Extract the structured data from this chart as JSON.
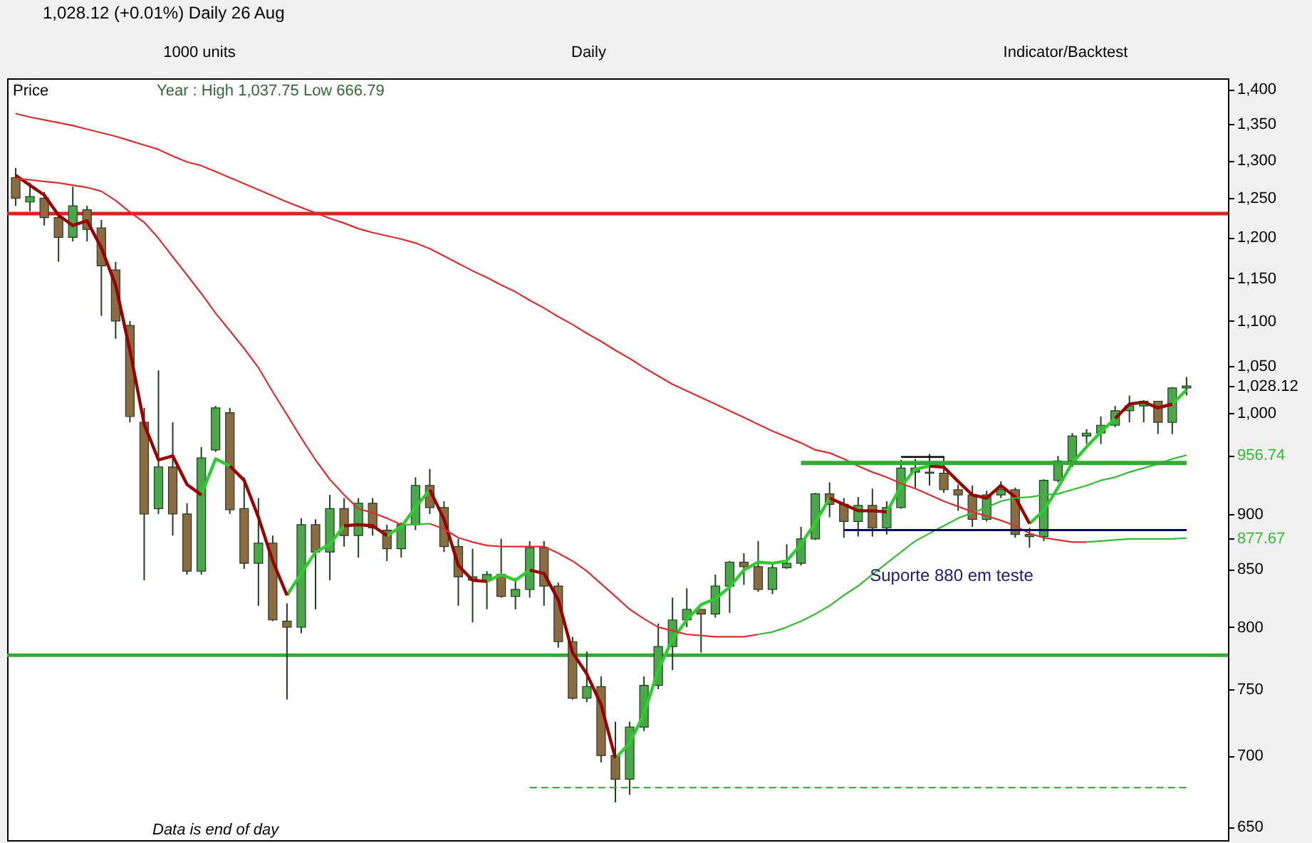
{
  "chart_data": {
    "type": "candlestick",
    "title": "1,028.12 (+0.01%) Daily 26 Aug",
    "subtitle": "Year : High 1,037.75 Low 666.79",
    "annotations": [
      "1000 units",
      "Daily",
      "Indicator/Backtest",
      "Price",
      "Data is end of day",
      "Suporte 880 em teste"
    ],
    "categories": [
      null,
      null,
      null,
      null,
      null,
      null,
      null,
      null,
      null,
      null,
      null,
      null,
      null,
      null,
      null,
      null,
      null,
      null,
      null,
      null,
      null,
      null,
      null,
      null,
      null,
      null,
      null,
      null,
      null,
      null,
      null,
      null,
      null,
      null,
      null,
      null,
      null,
      null,
      null,
      null,
      null,
      null,
      null,
      null,
      null,
      null,
      null,
      null,
      null,
      null,
      null,
      null,
      null,
      null,
      null,
      null,
      null,
      null,
      null,
      null,
      null,
      null,
      null,
      null,
      null,
      null,
      null,
      null,
      null,
      null,
      null,
      null,
      null,
      null,
      null,
      null,
      null,
      null,
      null,
      null,
      null,
      null,
      null
    ],
    "ohlc": [
      [
        1277,
        1290,
        1240,
        1250
      ],
      [
        1245,
        1270,
        1233,
        1252
      ],
      [
        1250,
        1258,
        1215,
        1225
      ],
      [
        1225,
        1232,
        1170,
        1200
      ],
      [
        1200,
        1265,
        1195,
        1240
      ],
      [
        1235,
        1240,
        1195,
        1210
      ],
      [
        1212,
        1222,
        1106,
        1165
      ],
      [
        1160,
        1170,
        1080,
        1100
      ],
      [
        1095,
        1100,
        990,
        996
      ],
      [
        990,
        1005,
        840,
        900
      ],
      [
        905,
        1045,
        900,
        945
      ],
      [
        945,
        990,
        880,
        900
      ],
      [
        900,
        910,
        845,
        848
      ],
      [
        848,
        965,
        845,
        954
      ],
      [
        962,
        1007,
        960,
        1005
      ],
      [
        1000,
        1005,
        900,
        904
      ],
      [
        905,
        935,
        850,
        855
      ],
      [
        855,
        915,
        818,
        873
      ],
      [
        873,
        880,
        805,
        806
      ],
      [
        805,
        820,
        742,
        800
      ],
      [
        800,
        896,
        795,
        890
      ],
      [
        890,
        895,
        815,
        865
      ],
      [
        865,
        918,
        840,
        905
      ],
      [
        905,
        915,
        870,
        880
      ],
      [
        880,
        915,
        860,
        910
      ],
      [
        910,
        915,
        880,
        887
      ],
      [
        885,
        890,
        857,
        868
      ],
      [
        868,
        892,
        860,
        890
      ],
      [
        890,
        935,
        885,
        927
      ],
      [
        927,
        943,
        900,
        906
      ],
      [
        906,
        912,
        865,
        870
      ],
      [
        870,
        877,
        818,
        843
      ],
      [
        843,
        868,
        804,
        840
      ],
      [
        840,
        848,
        815,
        845
      ],
      [
        845,
        877,
        825,
        826
      ],
      [
        826,
        842,
        815,
        832
      ],
      [
        832,
        875,
        825,
        869
      ],
      [
        869,
        875,
        818,
        835
      ],
      [
        835,
        838,
        783,
        788
      ],
      [
        788,
        792,
        742,
        743
      ],
      [
        743,
        780,
        740,
        752
      ],
      [
        752,
        760,
        695,
        700
      ],
      [
        700,
        725,
        666.79,
        683
      ],
      [
        683,
        725,
        672,
        721
      ],
      [
        721,
        760,
        718,
        753
      ],
      [
        753,
        803,
        750,
        784
      ],
      [
        784,
        825,
        765,
        806
      ],
      [
        806,
        833,
        800,
        815
      ],
      [
        815,
        815,
        779,
        811
      ],
      [
        811,
        845,
        808,
        835
      ],
      [
        835,
        857,
        812,
        856
      ],
      [
        856,
        864,
        836,
        852
      ],
      [
        852,
        875,
        830,
        832
      ],
      [
        832,
        855,
        828,
        851
      ],
      [
        851,
        872,
        850,
        855
      ],
      [
        855,
        888,
        853,
        877
      ],
      [
        877,
        920,
        876,
        919
      ],
      [
        919,
        930,
        897,
        909
      ],
      [
        909,
        915,
        878,
        893
      ],
      [
        893,
        916,
        879,
        908
      ],
      [
        908,
        924,
        879,
        887
      ],
      [
        887,
        912,
        881,
        906
      ],
      [
        906,
        952,
        905,
        944
      ],
      [
        944,
        953,
        925,
        940
      ],
      [
        940,
        958,
        927,
        939
      ],
      [
        939,
        956,
        920,
        923
      ],
      [
        923,
        928,
        903,
        918
      ],
      [
        918,
        927,
        888,
        895
      ],
      [
        895,
        922,
        893,
        918
      ],
      [
        918,
        931,
        915,
        923
      ],
      [
        923,
        925,
        878,
        881
      ],
      [
        881,
        887,
        869,
        879
      ],
      [
        879,
        933,
        875,
        932
      ],
      [
        932,
        956,
        930,
        951
      ],
      [
        951,
        979,
        945,
        976
      ],
      [
        976,
        983,
        968,
        979
      ],
      [
        979,
        996,
        968,
        987
      ],
      [
        987,
        1007,
        985,
        1002
      ],
      [
        1002,
        1018,
        990,
        1007
      ],
      [
        1007,
        1013,
        990,
        1012
      ],
      [
        1012,
        1012,
        978,
        990
      ],
      [
        990,
        1027,
        978,
        1026
      ],
      [
        1026,
        1037.75,
        1018,
        1028.12
      ]
    ],
    "colors": [
      "#8b6c42",
      "#4aa84a",
      "#8b6c42",
      "#8b6c42",
      "#4aa84a",
      "#8b6c42",
      "#8b6c42",
      "#8b6c42",
      "#8b6c42",
      "#8b6c42",
      "#4aa84a",
      "#8b6c42",
      "#8b6c42",
      "#4aa84a",
      "#4aa84a",
      "#8b6c42",
      "#8b6c42",
      "#4aa84a",
      "#8b6c42",
      "#8b6c42",
      "#4aa84a",
      "#8b6c42",
      "#4aa84a",
      "#8b6c42",
      "#4aa84a",
      "#8b6c42",
      "#8b6c42",
      "#4aa84a",
      "#4aa84a",
      "#8b6c42",
      "#8b6c42",
      "#8b6c42",
      "#8b6c42",
      "#4aa84a",
      "#8b6c42",
      "#4aa84a",
      "#4aa84a",
      "#8b6c42",
      "#8b6c42",
      "#8b6c42",
      "#4aa84a",
      "#8b6c42",
      "#8b6c42",
      "#4aa84a",
      "#4aa84a",
      "#4aa84a",
      "#4aa84a",
      "#4aa84a",
      "#8b6c42",
      "#4aa84a",
      "#4aa84a",
      "#8b6c42",
      "#8b6c42",
      "#4aa84a",
      "#4aa84a",
      "#4aa84a",
      "#4aa84a",
      "#8b6c42",
      "#8b6c42",
      "#4aa84a",
      "#8b6c42",
      "#4aa84a",
      "#4aa84a",
      "#8b6c42",
      "#8b6c42",
      "#8b6c42",
      "#8b6c42",
      "#8b6c42",
      "#4aa84a",
      "#4aa84a",
      "#8b6c42",
      "#8b6c42",
      "#4aa84a",
      "#4aa84a",
      "#4aa84a",
      "#4aa84a",
      "#4aa84a",
      "#4aa84a",
      "#4aa84a",
      "#4aa84a",
      "#8b6c42",
      "#4aa84a",
      "#4aa84a"
    ],
    "series": [
      {
        "type": "line",
        "color": "#2ecc2e",
        "values": [
          null,
          null,
          null,
          null,
          null,
          null,
          null,
          null,
          null,
          null,
          null,
          null,
          null,
          918,
          953,
          946,
          null,
          null,
          null,
          827,
          846,
          865,
          872,
          889,
          null,
          null,
          880,
          888,
          906,
          923,
          null,
          null,
          null,
          839,
          845,
          840,
          849,
          null,
          null,
          null,
          null,
          null,
          698,
          709,
          731,
          765,
          790,
          806,
          819,
          824,
          834,
          849,
          856,
          855,
          857,
          872,
          892,
          915,
          null,
          null,
          null,
          902,
          926,
          943,
          946,
          null,
          null,
          null,
          null,
          null,
          null,
          891,
          903,
          925,
          949,
          965,
          980,
          994,
          null,
          null,
          null,
          1009,
          1024
        ]
      },
      {
        "type": "line",
        "color": "#9a0000",
        "values": [
          1280,
          1267,
          1254,
          1228,
          1215,
          1221,
          1187,
          1142,
          1067,
          988,
          952,
          956,
          928,
          918,
          null,
          946,
          932,
          897,
          857,
          827,
          null,
          null,
          null,
          889,
          890,
          889,
          880,
          null,
          null,
          923,
          895,
          853,
          840,
          839,
          null,
          null,
          849,
          846,
          823,
          779,
          762,
          738,
          698,
          null,
          null,
          null,
          null,
          null,
          null,
          null,
          null,
          null,
          null,
          null,
          null,
          null,
          null,
          915,
          909,
          903,
          903,
          902,
          null,
          null,
          946,
          945,
          931,
          918,
          915,
          927,
          916,
          891,
          null,
          null,
          null,
          null,
          null,
          994,
          1009,
          1011,
          1005,
          1009,
          null
        ]
      },
      {
        "type": "line",
        "color": "#d83030",
        "values": [
          1276,
          1274,
          1272,
          1270,
          1267,
          1264,
          1259,
          1247,
          1232,
          1219,
          1199,
          1176,
          1154,
          1132,
          1109,
          1089,
          1069,
          1048,
          1022,
          998,
          974,
          952,
          933,
          918,
          905,
          901,
          896,
          890,
          null,
          891,
          886,
          878,
          874,
          871,
          870,
          870,
          870,
          870,
          864,
          857,
          848,
          837,
          826,
          815,
          807,
          800,
          797,
          794,
          793,
          792,
          792,
          792,
          794,
          null,
          null,
          null,
          null,
          null,
          null,
          null,
          null,
          null,
          null,
          null,
          null,
          null,
          null,
          null,
          null,
          null,
          null,
          null,
          null,
          null,
          null,
          null,
          null,
          null,
          null,
          null,
          null,
          null,
          null
        ]
      },
      {
        "type": "line",
        "color": "#33bb33",
        "values": [
          null,
          null,
          null,
          null,
          null,
          null,
          null,
          null,
          null,
          null,
          null,
          null,
          null,
          null,
          null,
          null,
          null,
          null,
          null,
          null,
          null,
          null,
          null,
          null,
          null,
          null,
          null,
          890,
          890,
          891,
          null,
          null,
          null,
          null,
          null,
          null,
          null,
          null,
          null,
          null,
          null,
          null,
          null,
          null,
          null,
          null,
          null,
          null,
          null,
          null,
          null,
          null,
          794,
          796,
          800,
          805,
          811,
          818,
          827,
          835,
          845,
          855,
          865,
          875,
          882,
          889,
          896,
          901,
          906,
          912,
          915,
          916,
          918,
          919,
          923,
          927,
          932,
          935,
          940,
          944,
          948,
          953,
          956.74
        ]
      },
      {
        "type": "line",
        "color": "#d83030",
        "values": [
          1365,
          1360,
          1356,
          1352,
          1348,
          1343,
          1338,
          1333,
          1327,
          1321,
          1315,
          1306,
          1298,
          1293,
          1285,
          1277,
          1269,
          1261,
          1253,
          1245,
          1238,
          1231,
          1224,
          1218,
          1211,
          1206,
          1202,
          1198,
          1193,
          1186,
          1177,
          1168,
          1159,
          1151,
          1142,
          1134,
          1124,
          1115,
          1105,
          1096,
          1086,
          1077,
          1067,
          1058,
          1048,
          1039,
          1030,
          1023,
          1016,
          1009,
          1002,
          995,
          988,
          981,
          975,
          969,
          962,
          959,
          953,
          946,
          940,
          935,
          929,
          924,
          918,
          912,
          907,
          902,
          898,
          894,
          889,
          882,
          878,
          876,
          874,
          874,
          null,
          null,
          null,
          null,
          null,
          null,
          null
        ]
      },
      {
        "type": "line",
        "color": "#33bb33",
        "values": [
          null,
          null,
          null,
          null,
          null,
          null,
          null,
          null,
          null,
          null,
          null,
          null,
          null,
          null,
          null,
          null,
          null,
          null,
          null,
          null,
          null,
          null,
          null,
          null,
          null,
          null,
          null,
          null,
          null,
          null,
          null,
          null,
          null,
          null,
          null,
          null,
          null,
          null,
          null,
          null,
          null,
          null,
          null,
          null,
          null,
          null,
          null,
          null,
          null,
          null,
          null,
          null,
          null,
          null,
          null,
          null,
          null,
          null,
          null,
          null,
          null,
          null,
          null,
          null,
          null,
          null,
          null,
          null,
          null,
          null,
          null,
          null,
          null,
          null,
          null,
          874,
          875,
          876,
          877,
          877,
          877,
          877,
          877.67
        ]
      },
      {
        "type": "line",
        "color": "#33aa33",
        "values": [
          null,
          null,
          null,
          null,
          null,
          null,
          null,
          null,
          null,
          null,
          null,
          null,
          null,
          null,
          null,
          null,
          null,
          null,
          null,
          null,
          null,
          null,
          null,
          null,
          null,
          null,
          null,
          null,
          null,
          null,
          null,
          null,
          null,
          null,
          null,
          null,
          null,
          null,
          null,
          null,
          null,
          null,
          null,
          null,
          null,
          null,
          null,
          null,
          null,
          null,
          null,
          null,
          null,
          null,
          null,
          949,
          949,
          949,
          949,
          949,
          949,
          949,
          949,
          949,
          949,
          949,
          949,
          949,
          949,
          949,
          949,
          949,
          949,
          949,
          949,
          949,
          949,
          949,
          949,
          949,
          949,
          949,
          949
        ]
      },
      {
        "type": "line",
        "color": "#000066",
        "values": [
          null,
          null,
          null,
          null,
          null,
          null,
          null,
          null,
          null,
          null,
          null,
          null,
          null,
          null,
          null,
          null,
          null,
          null,
          null,
          null,
          null,
          null,
          null,
          null,
          null,
          null,
          null,
          null,
          null,
          null,
          null,
          null,
          null,
          null,
          null,
          null,
          null,
          null,
          null,
          null,
          null,
          null,
          null,
          null,
          null,
          null,
          null,
          null,
          null,
          null,
          null,
          null,
          null,
          null,
          null,
          null,
          null,
          null,
          885,
          885,
          885,
          885,
          885,
          885,
          885,
          885,
          885,
          885,
          885,
          885,
          885,
          885,
          885,
          885,
          885,
          885,
          885,
          885,
          885,
          885,
          885,
          885,
          885
        ]
      },
      {
        "type": "line",
        "color": "#000000",
        "values": [
          null,
          null,
          null,
          null,
          null,
          null,
          null,
          null,
          null,
          null,
          null,
          null,
          null,
          null,
          null,
          null,
          null,
          null,
          null,
          null,
          null,
          null,
          null,
          null,
          null,
          null,
          null,
          null,
          null,
          null,
          null,
          null,
          null,
          null,
          null,
          null,
          null,
          null,
          null,
          null,
          null,
          null,
          null,
          null,
          null,
          null,
          null,
          null,
          null,
          null,
          null,
          null,
          null,
          null,
          null,
          null,
          null,
          null,
          null,
          null,
          null,
          null,
          955,
          955,
          955,
          955,
          null,
          null,
          null,
          null,
          null,
          null,
          null,
          null,
          null,
          null,
          null,
          null,
          null,
          null,
          null,
          null,
          null
        ]
      },
      {
        "type": "line",
        "color": "#339933",
        "line_style": "dashed",
        "values": [
          null,
          null,
          null,
          null,
          null,
          null,
          null,
          null,
          null,
          null,
          null,
          null,
          null,
          null,
          null,
          null,
          null,
          null,
          null,
          null,
          null,
          null,
          null,
          null,
          null,
          null,
          null,
          null,
          null,
          null,
          null,
          null,
          null,
          null,
          null,
          null,
          677,
          677,
          677,
          677,
          677,
          677,
          677,
          677,
          677,
          677,
          677,
          677,
          677,
          677,
          677,
          677,
          677,
          677,
          677,
          677,
          677,
          677,
          677,
          677,
          677,
          677,
          677,
          677,
          677,
          677,
          677,
          677,
          677,
          677,
          677,
          677,
          677,
          677,
          677,
          677,
          677,
          677,
          677,
          677,
          677,
          677,
          677
        ]
      }
    ],
    "ref_lines": [
      {
        "axis": "y",
        "value": 1230,
        "color": "#dd2222"
      },
      {
        "axis": "y",
        "value": 777,
        "color": "#33aa33"
      }
    ],
    "ylim": [
      641,
      1416
    ],
    "log": true,
    "tick_labels": "y",
    "yticks": [
      650,
      700,
      750,
      800,
      850,
      {
        "value": 877.67,
        "label": "877.67"
      },
      900,
      {
        "value": 956.74,
        "label": "956.74"
      },
      {
        "value": 1000,
        "label": "1,000"
      },
      {
        "value": 1028.12,
        "label": "1,028.12"
      },
      {
        "value": 1050,
        "label": "1,050"
      },
      {
        "value": 1100,
        "label": "1,100"
      },
      {
        "value": 1150,
        "label": "1,150"
      },
      {
        "value": 1200,
        "label": "1,200"
      },
      {
        "value": 1250,
        "label": "1,250"
      },
      {
        "value": 1300,
        "label": "1,300"
      },
      {
        "value": 1350,
        "label": "1,350"
      },
      {
        "value": 1400,
        "label": "1,400"
      }
    ]
  }
}
